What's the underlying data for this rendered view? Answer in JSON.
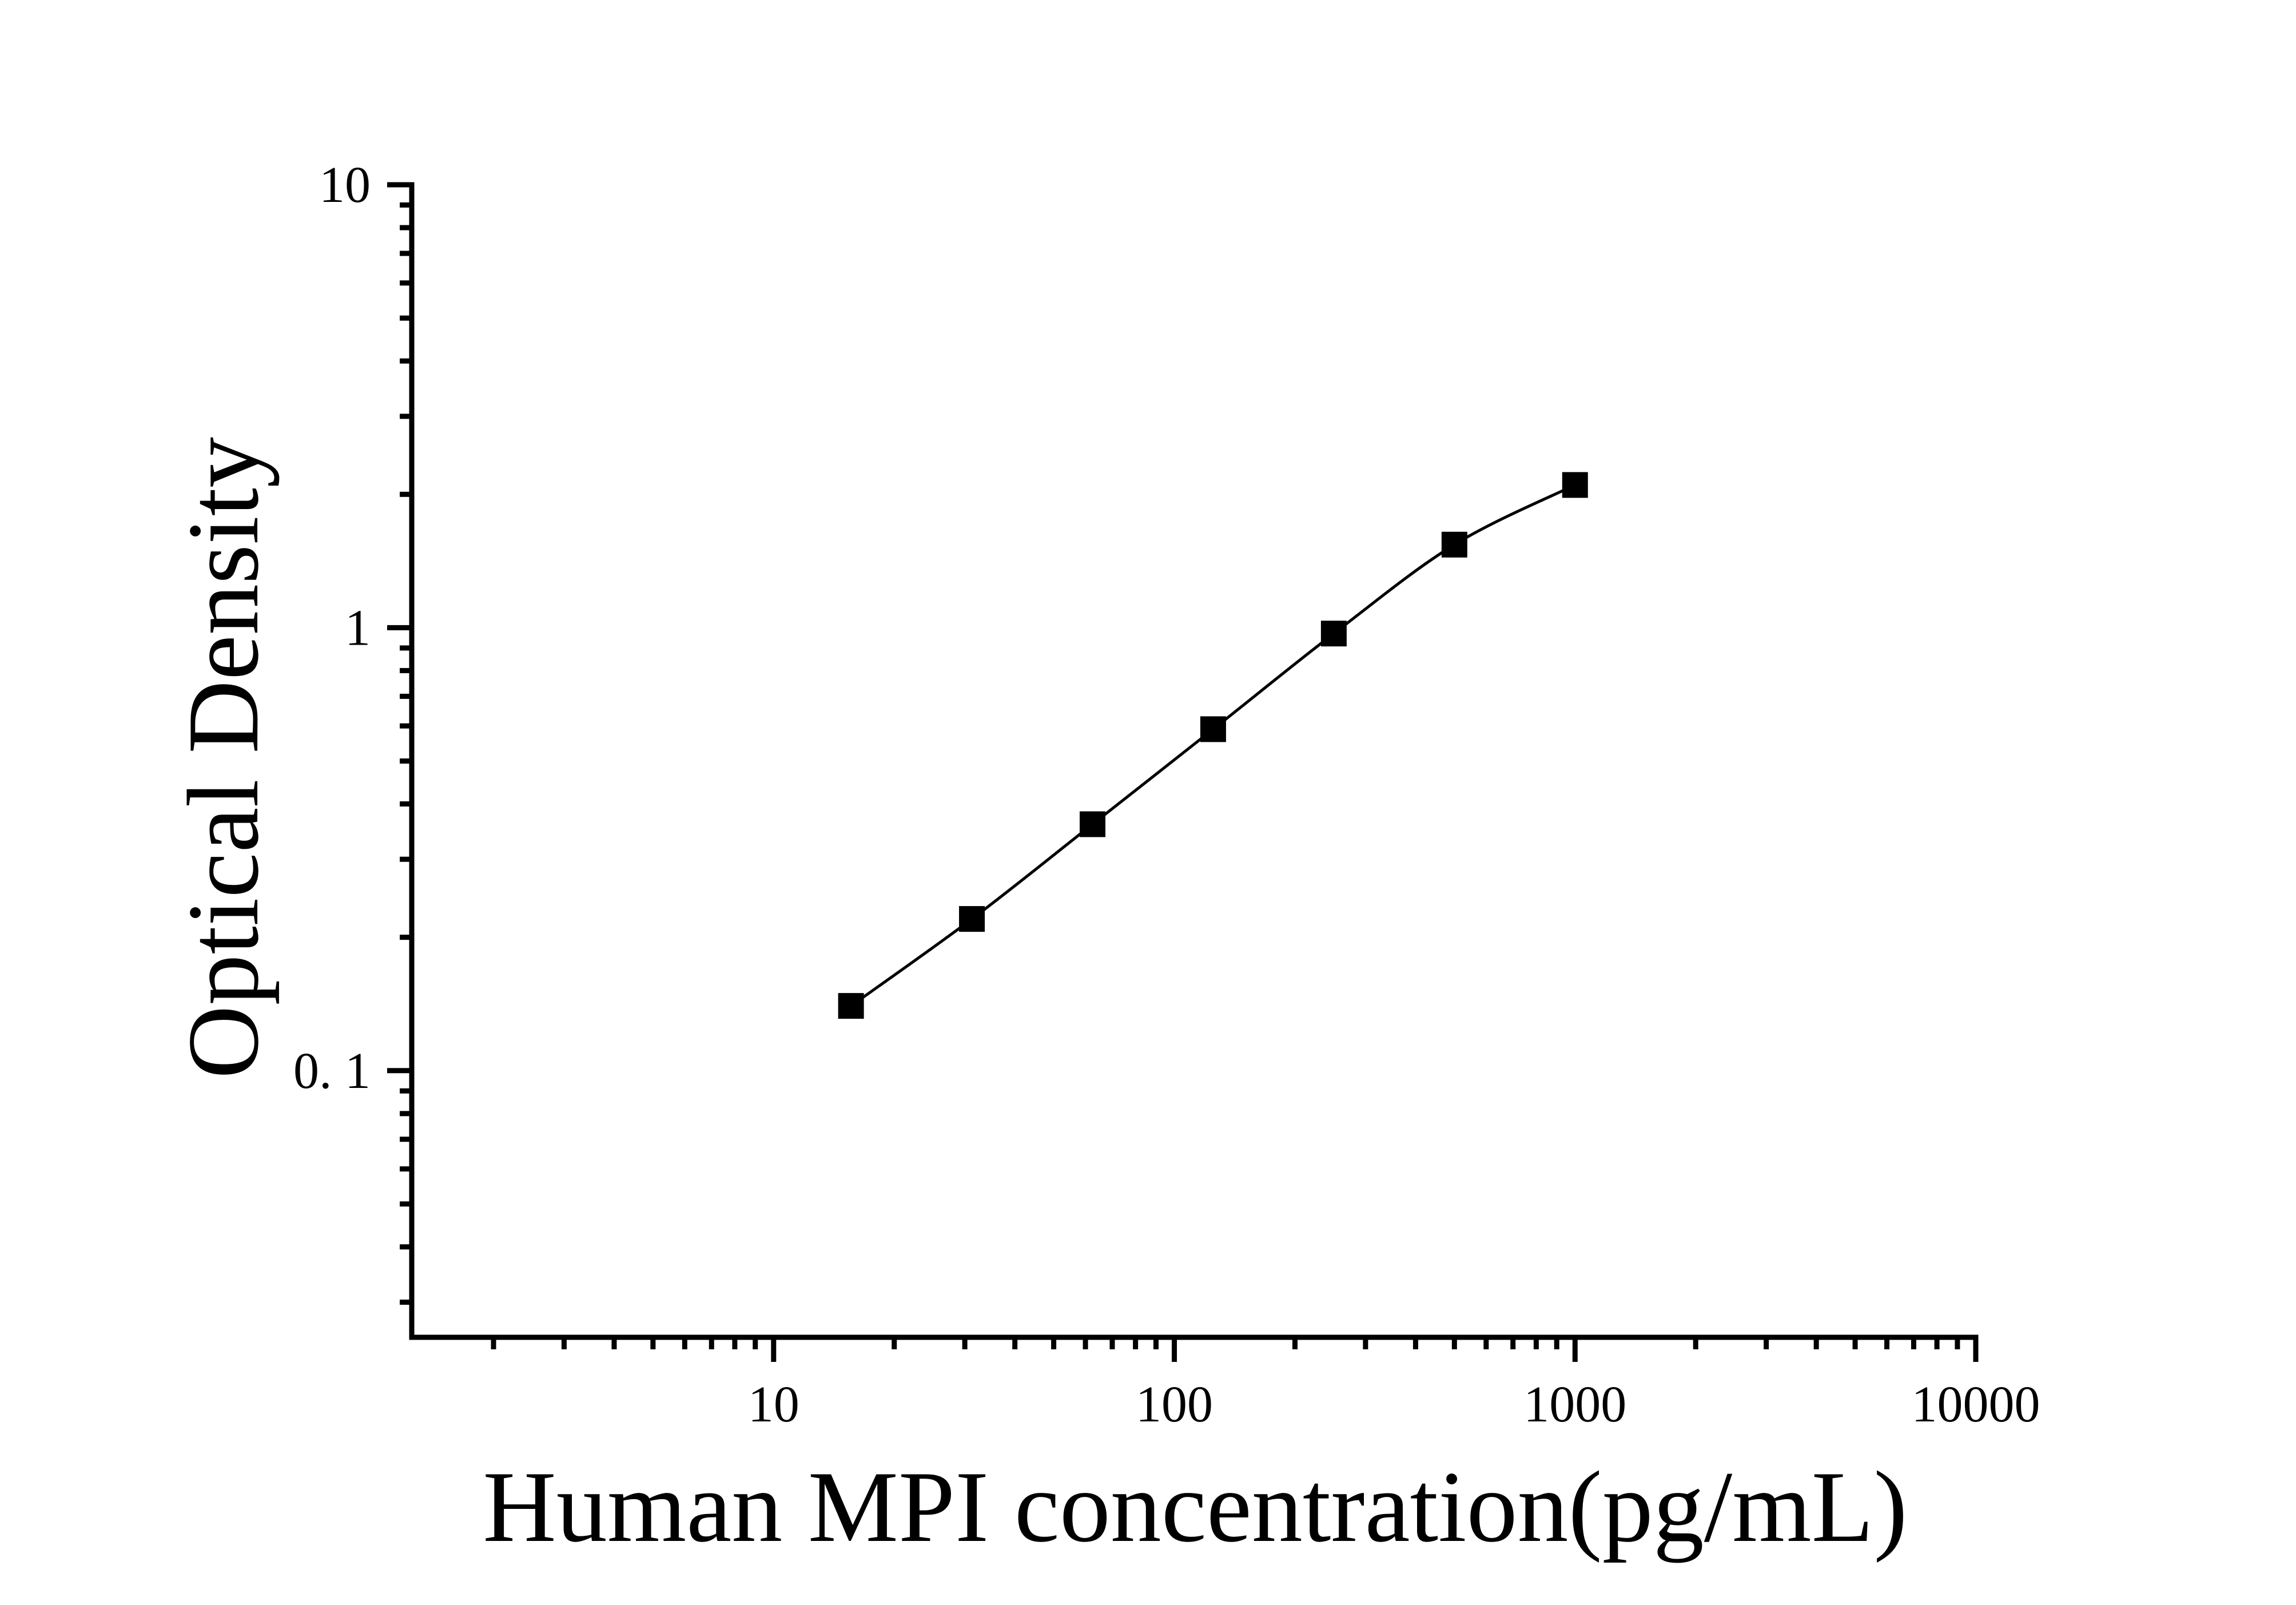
{
  "figure": {
    "background": "#ffffff",
    "ink_color": "#000000"
  },
  "chart_data": {
    "type": "line",
    "title": "",
    "xlabel": "Human MPI concentration(pg/mL)",
    "ylabel": "Optical Density",
    "x_scale": "log",
    "y_scale": "log",
    "xlim": [
      1.25,
      10000
    ],
    "ylim": [
      0.025,
      10
    ],
    "grid": false,
    "legend": "none",
    "axis_color": "#000000",
    "series": [
      {
        "name": "standard-curve",
        "marker": "filled-square",
        "marker_color": "#000000",
        "line_color": "#000000",
        "x": [
          15.6,
          31.25,
          62.5,
          125,
          250,
          500,
          1000
        ],
        "y": [
          0.14,
          0.22,
          0.36,
          0.59,
          0.97,
          1.54,
          2.1
        ]
      }
    ],
    "x_ticks": {
      "major": [
        10,
        100,
        1000,
        10000
      ],
      "labels": [
        "10",
        "100",
        "1000",
        "10000"
      ]
    },
    "y_ticks": {
      "major": [
        10,
        1,
        0.1
      ],
      "labels": [
        "10",
        "1",
        "0. 1"
      ]
    }
  }
}
